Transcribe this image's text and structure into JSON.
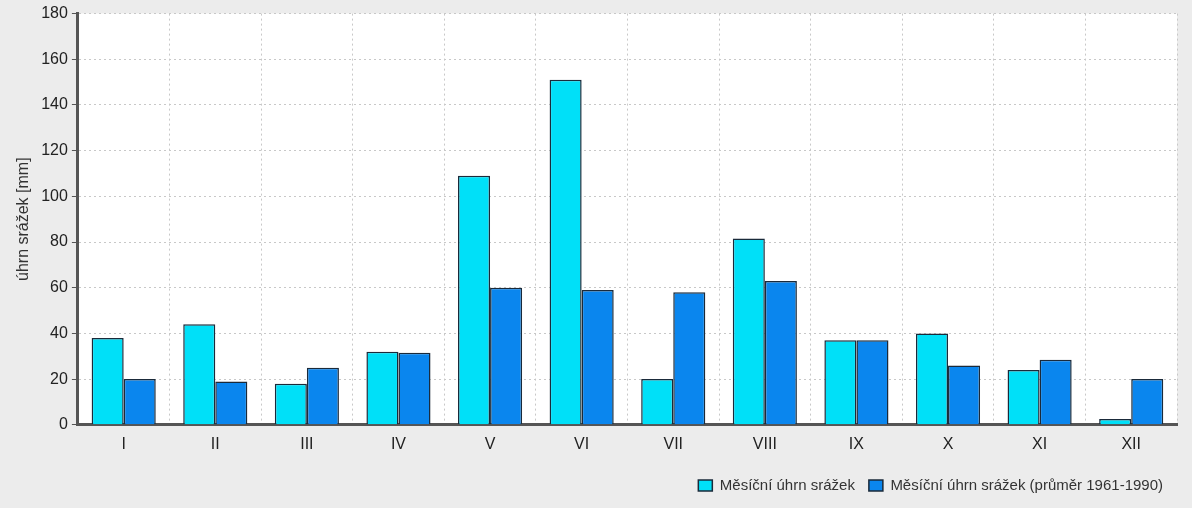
{
  "chart_data": {
    "type": "bar",
    "ylabel": "úhrn srážek [mm]",
    "categories": [
      "I",
      "II",
      "III",
      "IV",
      "V",
      "VI",
      "VII",
      "VIII",
      "IX",
      "X",
      "XI",
      "XII"
    ],
    "series": [
      {
        "name": "Měsíční úhrn srážek",
        "color": "#00e0f8",
        "values": [
          38,
          44,
          18,
          32,
          109,
          151,
          20,
          81.5,
          37,
          40,
          24,
          2.5
        ]
      },
      {
        "name": "Měsíční úhrn srážek (průměr 1961-1990)",
        "color": "#0a86ee",
        "values": [
          20,
          19,
          25,
          31.5,
          60,
          59,
          58,
          63,
          37,
          26,
          28.5,
          20
        ]
      }
    ],
    "ylim": [
      0,
      180
    ],
    "yticks": [
      0,
      20,
      40,
      60,
      80,
      100,
      120,
      140,
      160,
      180
    ],
    "grid": true,
    "legend": "bottom right"
  }
}
